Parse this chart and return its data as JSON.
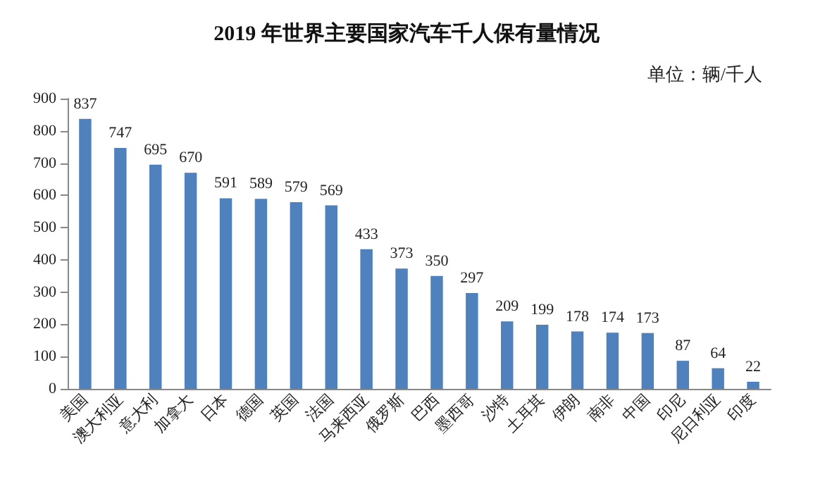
{
  "chart_data": {
    "type": "bar",
    "title": "2019 年世界主要国家汽车千人保有量情况",
    "annotations": [
      "单位：辆/千人"
    ],
    "categories": [
      "美国",
      "澳大利亚",
      "意大利",
      "加拿大",
      "日本",
      "德国",
      "英国",
      "法国",
      "马来西亚",
      "俄罗斯",
      "巴西",
      "墨西哥",
      "沙特",
      "土耳其",
      "伊朗",
      "南非",
      "中国",
      "印尼",
      "尼日利亚",
      "印度"
    ],
    "values": [
      837,
      747,
      695,
      670,
      591,
      589,
      579,
      569,
      433,
      373,
      350,
      297,
      209,
      199,
      178,
      174,
      173,
      87,
      64,
      22
    ],
    "color": "#4f81bd",
    "ylim": [
      0,
      900
    ],
    "yticks": [
      0,
      100,
      200,
      300,
      400,
      500,
      600,
      700,
      800,
      900
    ],
    "grid": false,
    "data_labels": true
  }
}
